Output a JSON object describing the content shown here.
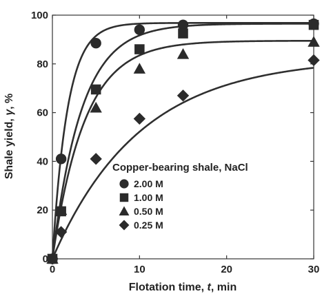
{
  "chart_data": {
    "type": "scatter",
    "xlabel": {
      "pre": "Flotation time, ",
      "var": "t",
      "post": ", min"
    },
    "ylabel": {
      "pre": "Shale yield, ",
      "var": "γ",
      "post": ", %"
    },
    "xlim": [
      0,
      30
    ],
    "ylim": [
      0,
      100
    ],
    "xticks": [
      0,
      10,
      20,
      30
    ],
    "yticks": [
      0,
      20,
      40,
      60,
      80,
      100
    ],
    "grid": false,
    "legend": {
      "title": "Copper-bearing shale, NaCl",
      "position": "center-right"
    },
    "series": [
      {
        "name": "2.00 M",
        "marker": "circle",
        "color": "#2b2b2b",
        "x": [
          0,
          1,
          5,
          10,
          15,
          30
        ],
        "y": [
          0,
          41,
          88.5,
          94,
          96,
          96.5
        ],
        "fit": {
          "k": 0.58,
          "max": 96.8
        }
      },
      {
        "name": "1.00 M",
        "marker": "square",
        "color": "#2b2b2b",
        "x": [
          0,
          1,
          5,
          10,
          15,
          30
        ],
        "y": [
          0,
          19.5,
          69.5,
          86,
          92.5,
          96
        ],
        "fit": {
          "k": 0.3,
          "max": 96.5
        }
      },
      {
        "name": "0.50 M",
        "marker": "triangle",
        "color": "#2b2b2b",
        "x": [
          0,
          1,
          5,
          10,
          15,
          30
        ],
        "y": [
          0,
          20,
          62,
          78,
          84,
          89
        ],
        "fit": {
          "k": 0.27,
          "max": 89.5
        }
      },
      {
        "name": "0.25 M",
        "marker": "diamond",
        "color": "#2b2b2b",
        "x": [
          0,
          1,
          5,
          10,
          15,
          30
        ],
        "y": [
          0,
          11,
          41,
          57.5,
          67,
          81.5
        ],
        "fit": {
          "k": 0.1,
          "max": 82.5
        }
      }
    ]
  }
}
